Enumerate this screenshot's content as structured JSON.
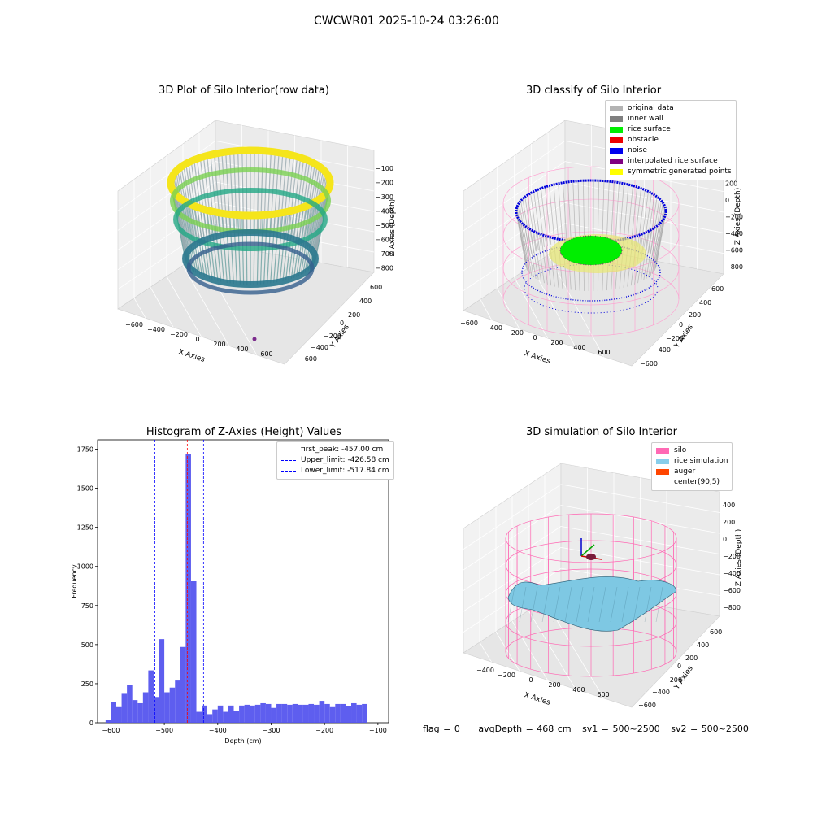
{
  "suptitle": "CWCWR01 2025-10-24 03:26:00",
  "panels": {
    "raw": {
      "title": "3D Plot of Silo Interior(row data)",
      "xlabel": "X Axies",
      "ylabel": "Y Axies",
      "zlabel": "Z Axies (Depth)",
      "xticks": [
        "−600",
        "−400",
        "−200",
        "0",
        "200",
        "400",
        "600"
      ],
      "yticks": [
        "600",
        "400",
        "200",
        "0",
        "−200",
        "−400",
        "−600"
      ],
      "zticks": [
        "−100",
        "−200",
        "−300",
        "−400",
        "−500",
        "−600",
        "−700",
        "−800"
      ]
    },
    "classify": {
      "title": "3D classify of Silo Interior",
      "xlabel": "X Axies",
      "ylabel": "Y Axies",
      "zlabel": "Z Axies (Depth)",
      "xticks": [
        "−600",
        "−400",
        "−200",
        "0",
        "200",
        "400",
        "600"
      ],
      "yticks": [
        "600",
        "400",
        "200",
        "0",
        "−200",
        "−400",
        "−600"
      ],
      "zticks": [
        "400",
        "200",
        "0",
        "−200",
        "−400",
        "−600",
        "−800"
      ],
      "legend": [
        {
          "label": "original data",
          "color": "#b3b3b3"
        },
        {
          "label": "inner wall",
          "color": "#808080"
        },
        {
          "label": "rice surface",
          "color": "#00ee00"
        },
        {
          "label": "obstacle",
          "color": "#ee0000"
        },
        {
          "label": "noise",
          "color": "#0000ee"
        },
        {
          "label": "interpolated rice surface",
          "color": "#800080"
        },
        {
          "label": "symmetric generated points",
          "color": "#ffff00"
        }
      ]
    },
    "hist": {
      "title": "Histogram of Z-Axies (Height) Values",
      "xlabel": "Depth (cm)",
      "ylabel": "Frequency",
      "legend": [
        {
          "label": "first_peak: -457.00 cm",
          "color": "#ff0000"
        },
        {
          "label": "Upper_limit: -426.58 cm",
          "color": "#0000ff"
        },
        {
          "label": "Lower_limit: -517.84 cm",
          "color": "#0000ff"
        }
      ]
    },
    "sim": {
      "title": "3D simulation of Silo Interior",
      "xlabel": "X Axies",
      "ylabel": "Y Axies",
      "zlabel": "Z Axies (Depth)",
      "xticks": [
        "−400",
        "−200",
        "0",
        "200",
        "400",
        "600"
      ],
      "yticks": [
        "600",
        "400",
        "200",
        "0",
        "−200",
        "−400",
        "−600"
      ],
      "zticks": [
        "400",
        "200",
        "0",
        "−200",
        "−400",
        "−600",
        "−800"
      ],
      "legend": [
        {
          "label": "silo",
          "color": "#ff69b4"
        },
        {
          "label": "rice simulation",
          "color": "#87ceeb"
        },
        {
          "label": "auger",
          "color": "#ff4500"
        },
        {
          "label": "center(90,5)",
          "color": "#ffffff"
        }
      ]
    }
  },
  "chart_data": {
    "type": "bar",
    "title": "Histogram of Z-Axies (Height) Values",
    "xlabel": "Depth (cm)",
    "ylabel": "Frequency",
    "xlim": [
      -625,
      -80
    ],
    "ylim": [
      0,
      1810
    ],
    "xticks": [
      -600,
      -500,
      -400,
      -300,
      -200,
      -100
    ],
    "yticks": [
      0,
      250,
      500,
      750,
      1000,
      1250,
      1500,
      1750
    ],
    "bin_start": -610,
    "bin_width": 10,
    "values": [
      20,
      135,
      100,
      185,
      240,
      145,
      125,
      195,
      335,
      165,
      535,
      195,
      225,
      270,
      485,
      1720,
      905,
      70,
      110,
      55,
      85,
      110,
      70,
      110,
      75,
      110,
      115,
      110,
      115,
      125,
      120,
      95,
      120,
      120,
      115,
      120,
      115,
      115,
      120,
      115,
      140,
      120,
      100,
      120,
      120,
      105,
      125,
      115,
      120
    ],
    "vlines": [
      {
        "x": -457.0,
        "color": "#ff0000"
      },
      {
        "x": -426.58,
        "color": "#0000ff"
      },
      {
        "x": -517.84,
        "color": "#0000ff"
      }
    ],
    "bar_color": "#5555ee",
    "legend_position": "upper right"
  },
  "footer": {
    "flag": "flag = 0",
    "avg": "avgDepth = 468 cm",
    "sv1": "sv1 = 500~2500",
    "sv2": "sv2 = 500~2500"
  }
}
